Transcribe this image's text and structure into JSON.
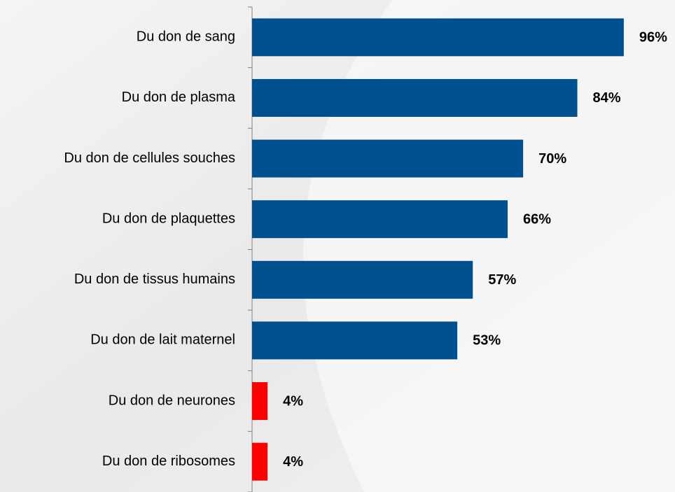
{
  "chart_data": {
    "type": "bar",
    "orientation": "horizontal",
    "categories": [
      "Du don de sang",
      "Du don de plasma",
      "Du don de cellules souches",
      "Du don de plaquettes",
      "Du don de tissus humains",
      "Du don de lait maternel",
      "Du don de neurones",
      "Du don de ribosomes"
    ],
    "values": [
      96,
      84,
      70,
      66,
      57,
      53,
      4,
      4
    ],
    "value_labels": [
      "96%",
      "84%",
      "70%",
      "66%",
      "57%",
      "53%",
      "4%",
      "4%"
    ],
    "colors": [
      "#00508f",
      "#00508f",
      "#00508f",
      "#00508f",
      "#00508f",
      "#00508f",
      "#ff0000",
      "#ff0000"
    ],
    "xlim": [
      0,
      100
    ]
  }
}
